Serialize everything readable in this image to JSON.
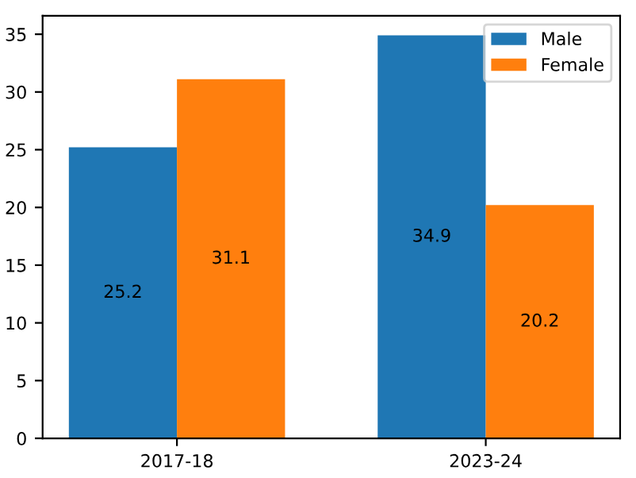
{
  "chart_data": {
    "type": "bar",
    "categories": [
      "2017-18",
      "2023-24"
    ],
    "series": [
      {
        "name": "Male",
        "color": "#1f77b4",
        "values": [
          25.2,
          34.9
        ]
      },
      {
        "name": "Female",
        "color": "#ff7f0e",
        "values": [
          31.1,
          20.2
        ]
      }
    ],
    "ylim": [
      0,
      36.6
    ],
    "yticks": [
      0,
      5,
      10,
      15,
      20,
      25,
      30,
      35
    ],
    "data_labels": true,
    "legend": "top right",
    "grid": false
  }
}
